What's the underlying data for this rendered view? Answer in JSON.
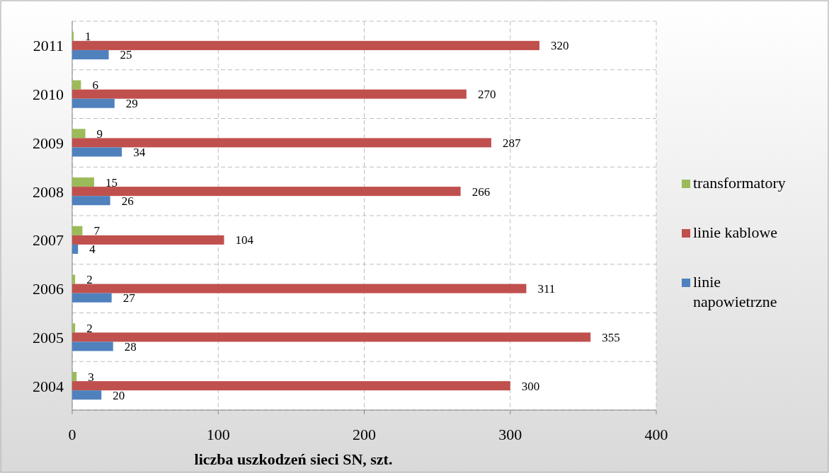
{
  "chart_data": {
    "type": "bar",
    "orientation": "horizontal",
    "categories": [
      "2011",
      "2010",
      "2009",
      "2008",
      "2007",
      "2006",
      "2005",
      "2004"
    ],
    "series": [
      {
        "name": "transformatory",
        "color": "#9bbb59",
        "values": [
          1,
          6,
          9,
          15,
          7,
          2,
          2,
          3
        ]
      },
      {
        "name": "linie kablowe",
        "color": "#c0504d",
        "values": [
          320,
          270,
          287,
          266,
          104,
          311,
          355,
          300
        ]
      },
      {
        "name": "linie napowietrzne",
        "color": "#4f81bd",
        "values": [
          25,
          29,
          34,
          26,
          4,
          27,
          28,
          20
        ]
      }
    ],
    "xlim": [
      0,
      400
    ],
    "xticks": [
      0,
      100,
      200,
      300,
      400
    ],
    "xlabel": "liczba uszkodzeń sieci SN, szt.",
    "grid": true,
    "legend": "right",
    "data_labels": true
  }
}
